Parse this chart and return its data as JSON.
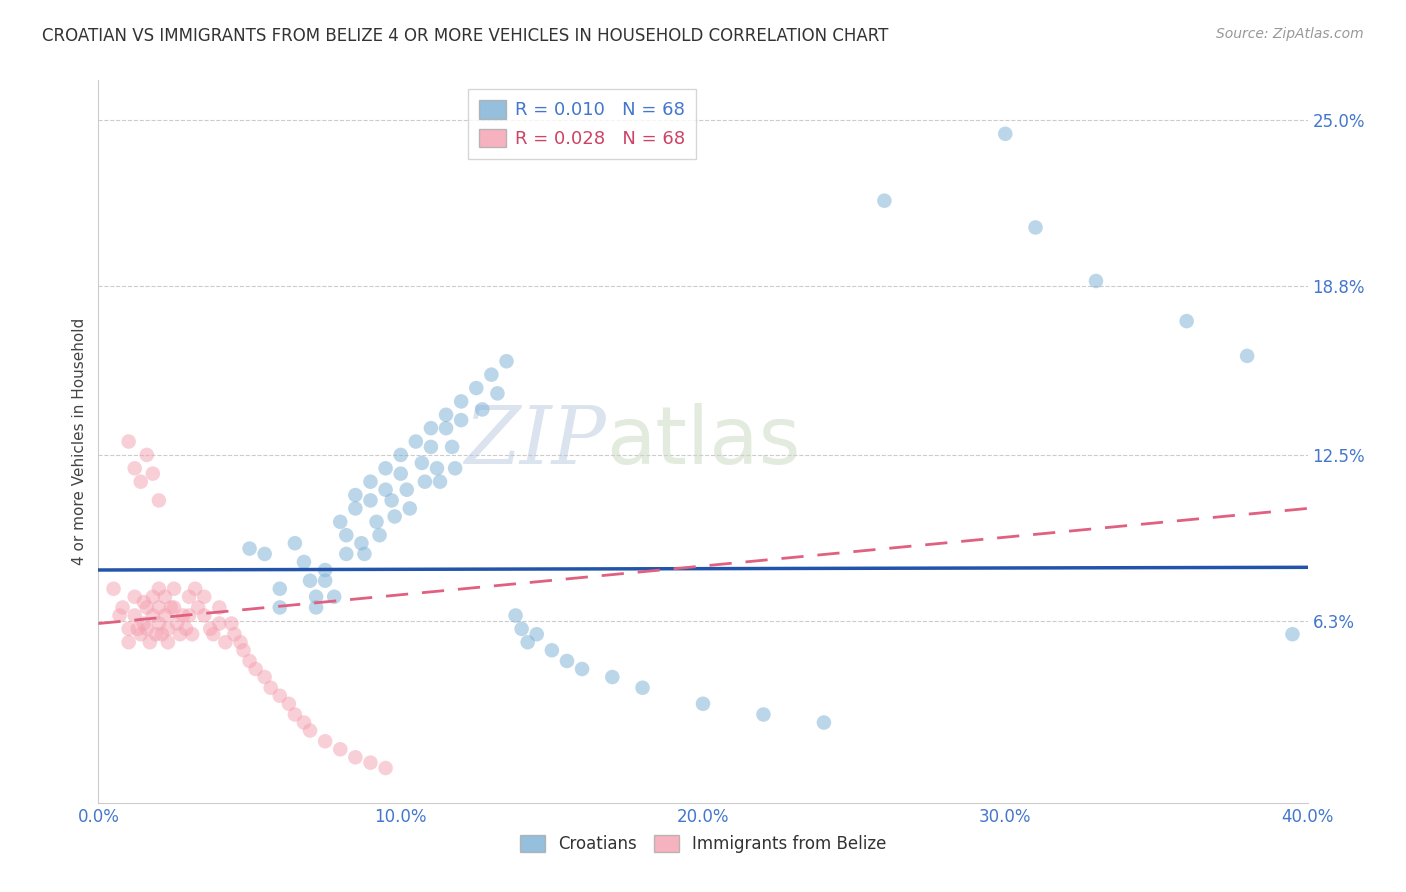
{
  "title": "CROATIAN VS IMMIGRANTS FROM BELIZE 4 OR MORE VEHICLES IN HOUSEHOLD CORRELATION CHART",
  "source": "Source: ZipAtlas.com",
  "ylabel": "4 or more Vehicles in Household",
  "xlim": [
    0.0,
    0.4
  ],
  "ylim": [
    -0.005,
    0.265
  ],
  "xtick_labels": [
    "0.0%",
    "10.0%",
    "20.0%",
    "30.0%",
    "40.0%"
  ],
  "xtick_values": [
    0.0,
    0.1,
    0.2,
    0.3,
    0.4
  ],
  "ytick_labels": [
    "6.3%",
    "12.5%",
    "18.8%",
    "25.0%"
  ],
  "ytick_values": [
    0.063,
    0.125,
    0.188,
    0.25
  ],
  "legend_entries": [
    {
      "label": "R = 0.010   N = 68",
      "color": "#7bafd4"
    },
    {
      "label": "R = 0.028   N = 68",
      "color": "#f4a0b0"
    }
  ],
  "bottom_legend": [
    "Croatians",
    "Immigrants from Belize"
  ],
  "blue_color": "#7bafd4",
  "pink_color": "#f4a0b0",
  "blue_line_color": "#2255aa",
  "pink_line_color": "#e06080",
  "watermark_zip": "ZIP",
  "watermark_atlas": "atlas",
  "blue_scatter_x": [
    0.05,
    0.055,
    0.06,
    0.06,
    0.065,
    0.068,
    0.07,
    0.072,
    0.072,
    0.075,
    0.075,
    0.078,
    0.08,
    0.082,
    0.082,
    0.085,
    0.085,
    0.087,
    0.088,
    0.09,
    0.09,
    0.092,
    0.093,
    0.095,
    0.095,
    0.097,
    0.098,
    0.1,
    0.1,
    0.102,
    0.103,
    0.105,
    0.107,
    0.108,
    0.11,
    0.11,
    0.112,
    0.113,
    0.115,
    0.115,
    0.117,
    0.118,
    0.12,
    0.12,
    0.125,
    0.127,
    0.13,
    0.132,
    0.135,
    0.138,
    0.14,
    0.142,
    0.145,
    0.15,
    0.155,
    0.16,
    0.17,
    0.18,
    0.2,
    0.22,
    0.24,
    0.26,
    0.3,
    0.31,
    0.33,
    0.36,
    0.38,
    0.395
  ],
  "blue_scatter_y": [
    0.09,
    0.088,
    0.075,
    0.068,
    0.092,
    0.085,
    0.078,
    0.072,
    0.068,
    0.082,
    0.078,
    0.072,
    0.1,
    0.095,
    0.088,
    0.11,
    0.105,
    0.092,
    0.088,
    0.115,
    0.108,
    0.1,
    0.095,
    0.12,
    0.112,
    0.108,
    0.102,
    0.125,
    0.118,
    0.112,
    0.105,
    0.13,
    0.122,
    0.115,
    0.135,
    0.128,
    0.12,
    0.115,
    0.14,
    0.135,
    0.128,
    0.12,
    0.145,
    0.138,
    0.15,
    0.142,
    0.155,
    0.148,
    0.16,
    0.065,
    0.06,
    0.055,
    0.058,
    0.052,
    0.048,
    0.045,
    0.042,
    0.038,
    0.032,
    0.028,
    0.025,
    0.22,
    0.245,
    0.21,
    0.19,
    0.175,
    0.162,
    0.058
  ],
  "pink_scatter_x": [
    0.005,
    0.007,
    0.008,
    0.01,
    0.01,
    0.012,
    0.012,
    0.013,
    0.014,
    0.015,
    0.015,
    0.016,
    0.016,
    0.017,
    0.018,
    0.018,
    0.019,
    0.02,
    0.02,
    0.02,
    0.021,
    0.022,
    0.022,
    0.023,
    0.023,
    0.024,
    0.025,
    0.025,
    0.026,
    0.027,
    0.028,
    0.029,
    0.03,
    0.03,
    0.031,
    0.032,
    0.033,
    0.035,
    0.035,
    0.037,
    0.038,
    0.04,
    0.04,
    0.042,
    0.044,
    0.045,
    0.047,
    0.048,
    0.05,
    0.052,
    0.055,
    0.057,
    0.06,
    0.063,
    0.065,
    0.068,
    0.07,
    0.075,
    0.08,
    0.085,
    0.09,
    0.095,
    0.01,
    0.012,
    0.014,
    0.016,
    0.018,
    0.02
  ],
  "pink_scatter_y": [
    0.075,
    0.065,
    0.068,
    0.06,
    0.055,
    0.072,
    0.065,
    0.06,
    0.058,
    0.07,
    0.062,
    0.068,
    0.06,
    0.055,
    0.072,
    0.065,
    0.058,
    0.075,
    0.068,
    0.062,
    0.058,
    0.072,
    0.065,
    0.06,
    0.055,
    0.068,
    0.075,
    0.068,
    0.062,
    0.058,
    0.065,
    0.06,
    0.072,
    0.065,
    0.058,
    0.075,
    0.068,
    0.072,
    0.065,
    0.06,
    0.058,
    0.068,
    0.062,
    0.055,
    0.062,
    0.058,
    0.055,
    0.052,
    0.048,
    0.045,
    0.042,
    0.038,
    0.035,
    0.032,
    0.028,
    0.025,
    0.022,
    0.018,
    0.015,
    0.012,
    0.01,
    0.008,
    0.13,
    0.12,
    0.115,
    0.125,
    0.118,
    0.108
  ],
  "blue_trend": [
    0.082,
    0.083
  ],
  "pink_trend_start": 0.062,
  "pink_trend_end": 0.105
}
